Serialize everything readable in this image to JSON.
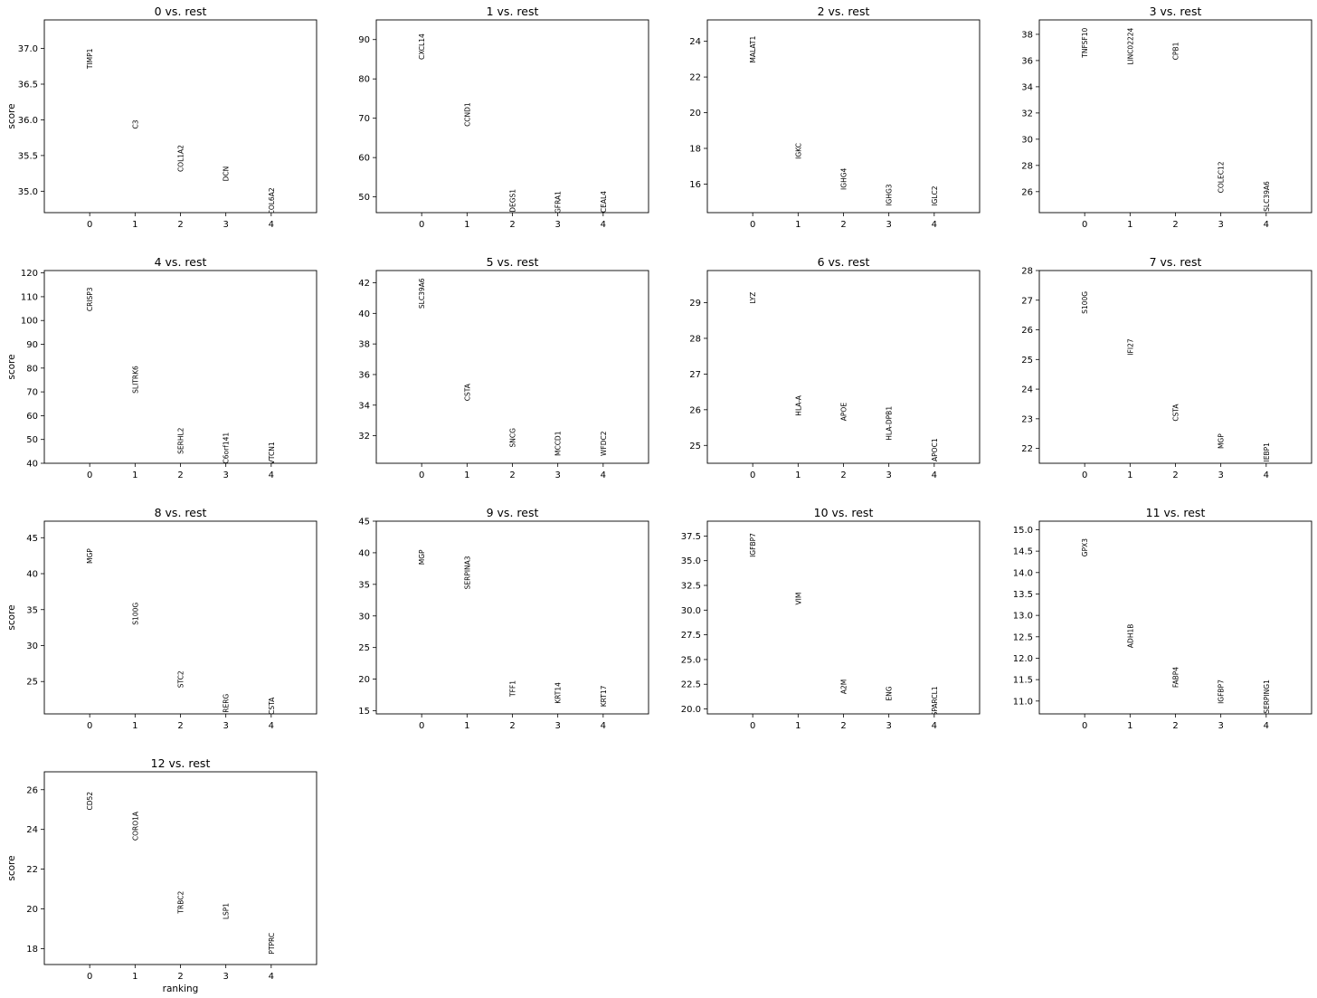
{
  "chart_data": [
    {
      "type": "scatter",
      "title": "0 vs. rest",
      "categories": [
        "0",
        "1",
        "2",
        "3",
        "4"
      ],
      "genes": [
        "TIMP1",
        "C3",
        "COL1A2",
        "DCN",
        "COL6A2"
      ],
      "values": [
        37.0,
        36.0,
        35.65,
        35.35,
        35.05
      ],
      "ylim": [
        34.7,
        37.4
      ],
      "yticks": [
        "35.0",
        "35.5",
        "36.0",
        "36.5",
        "37.0"
      ],
      "ylabel": "score",
      "xlabel": ""
    },
    {
      "type": "scatter",
      "title": "1 vs. rest",
      "categories": [
        "0",
        "1",
        "2",
        "3",
        "4"
      ],
      "genes": [
        "CXCL14",
        "CCND1",
        "DEGS1",
        "GFRA1",
        "TCEAL4"
      ],
      "values": [
        91.5,
        74.0,
        52.0,
        51.5,
        51.5
      ],
      "ylim": [
        46,
        95
      ],
      "yticks": [
        "50",
        "60",
        "70",
        "80",
        "90"
      ],
      "ylabel": "",
      "xlabel": ""
    },
    {
      "type": "scatter",
      "title": "2 vs. rest",
      "categories": [
        "0",
        "1",
        "2",
        "3",
        "4"
      ],
      "genes": [
        "MALAT1",
        "IGKC",
        "IGHG4",
        "IGHG3",
        "IGLC2"
      ],
      "values": [
        24.3,
        18.3,
        16.9,
        16.0,
        15.9
      ],
      "ylim": [
        14.4,
        25.2
      ],
      "yticks": [
        "16",
        "18",
        "20",
        "22",
        "24"
      ],
      "ylabel": "",
      "xlabel": ""
    },
    {
      "type": "scatter",
      "title": "3 vs. rest",
      "categories": [
        "0",
        "1",
        "2",
        "3",
        "4"
      ],
      "genes": [
        "TNFSF10",
        "LINC02224",
        "CPB1",
        "COLEC12",
        "SLC39A6"
      ],
      "values": [
        38.5,
        38.5,
        37.4,
        28.3,
        26.8
      ],
      "ylim": [
        24.4,
        39.1
      ],
      "yticks": [
        "26",
        "28",
        "30",
        "32",
        "34",
        "36",
        "38"
      ],
      "ylabel": "",
      "xlabel": ""
    },
    {
      "type": "scatter",
      "title": "4 vs. rest",
      "categories": [
        "0",
        "1",
        "2",
        "3",
        "4"
      ],
      "genes": [
        "CRISP3",
        "SLITRK6",
        "SERHL2",
        "C6orf141",
        "VTCN1"
      ],
      "values": [
        114,
        81,
        55,
        53,
        49
      ],
      "ylim": [
        40,
        121
      ],
      "yticks": [
        "40",
        "50",
        "60",
        "70",
        "80",
        "90",
        "100",
        "110",
        "120"
      ],
      "ylabel": "score",
      "xlabel": ""
    },
    {
      "type": "scatter",
      "title": "5 vs. rest",
      "categories": [
        "0",
        "1",
        "2",
        "3",
        "4"
      ],
      "genes": [
        "SLC39A6",
        "CSTA",
        "SNCG",
        "MCCD1",
        "WFDC2"
      ],
      "values": [
        42.3,
        35.4,
        32.5,
        32.3,
        32.3
      ],
      "ylim": [
        30.2,
        42.8
      ],
      "yticks": [
        "32",
        "34",
        "36",
        "38",
        "40",
        "42"
      ],
      "ylabel": "",
      "xlabel": ""
    },
    {
      "type": "scatter",
      "title": "6 vs. rest",
      "categories": [
        "0",
        "1",
        "2",
        "3",
        "4"
      ],
      "genes": [
        "LYZ",
        "HLA-A",
        "APOE",
        "HLA-DPB1",
        "APOC1"
      ],
      "values": [
        29.3,
        26.4,
        26.2,
        26.1,
        25.2
      ],
      "ylim": [
        24.5,
        29.9
      ],
      "yticks": [
        "25",
        "26",
        "27",
        "28",
        "29"
      ],
      "ylabel": "",
      "xlabel": ""
    },
    {
      "type": "scatter",
      "title": "7 vs. rest",
      "categories": [
        "0",
        "1",
        "2",
        "3",
        "4"
      ],
      "genes": [
        "S100G",
        "IFI27",
        "CSTA",
        "MGP",
        "IEBP1"
      ],
      "values": [
        27.3,
        25.7,
        23.5,
        22.5,
        22.2
      ],
      "ylim": [
        21.5,
        28.0
      ],
      "yticks": [
        "22",
        "23",
        "24",
        "25",
        "26",
        "27",
        "28"
      ],
      "ylabel": "",
      "xlabel": ""
    },
    {
      "type": "scatter",
      "title": "8 vs. rest",
      "categories": [
        "0",
        "1",
        "2",
        "3",
        "4"
      ],
      "genes": [
        "MGP",
        "S100G",
        "STC2",
        "RERG",
        "CSTA"
      ],
      "values": [
        43.5,
        36.0,
        26.5,
        23.3,
        22.8
      ],
      "ylim": [
        20.5,
        47.3
      ],
      "yticks": [
        "25",
        "30",
        "35",
        "40",
        "45"
      ],
      "ylabel": "score",
      "xlabel": ""
    },
    {
      "type": "scatter",
      "title": "9 vs. rest",
      "categories": [
        "0",
        "1",
        "2",
        "3",
        "4"
      ],
      "genes": [
        "MGP",
        "SERPINA3",
        "TFF1",
        "KRT14",
        "KRT17"
      ],
      "values": [
        40.5,
        39.5,
        19.8,
        19.5,
        19.0
      ],
      "ylim": [
        14.5,
        45.0
      ],
      "yticks": [
        "15",
        "20",
        "25",
        "30",
        "35",
        "40",
        "45"
      ],
      "ylabel": "",
      "xlabel": ""
    },
    {
      "type": "scatter",
      "title": "10 vs. rest",
      "categories": [
        "0",
        "1",
        "2",
        "3",
        "4"
      ],
      "genes": [
        "IGFBP7",
        "VIM",
        "A2M",
        "ENG",
        "SPARCL1"
      ],
      "values": [
        37.8,
        31.8,
        23.0,
        22.3,
        22.3
      ],
      "ylim": [
        19.5,
        39.0
      ],
      "yticks": [
        "20.0",
        "22.5",
        "25.0",
        "27.5",
        "30.0",
        "32.5",
        "35.0",
        "37.5"
      ],
      "ylabel": "",
      "xlabel": ""
    },
    {
      "type": "scatter",
      "title": "11 vs. rest",
      "categories": [
        "0",
        "1",
        "2",
        "3",
        "4"
      ],
      "genes": [
        "GPX3",
        "ADH1B",
        "FABP4",
        "IGFBP7",
        "SERPING1"
      ],
      "values": [
        14.8,
        12.8,
        11.8,
        11.5,
        11.5
      ],
      "ylim": [
        10.7,
        15.2
      ],
      "yticks": [
        "11.0",
        "11.5",
        "12.0",
        "12.5",
        "13.0",
        "13.5",
        "14.0",
        "14.5",
        "15.0"
      ],
      "ylabel": "",
      "xlabel": ""
    },
    {
      "type": "scatter",
      "title": "12 vs. rest",
      "categories": [
        "0",
        "1",
        "2",
        "3",
        "4"
      ],
      "genes": [
        "CD52",
        "CORO1A",
        "TRBC2",
        "LSP1",
        "PTPRC"
      ],
      "values": [
        25.9,
        24.9,
        20.9,
        20.3,
        18.8
      ],
      "ylim": [
        17.2,
        26.9
      ],
      "yticks": [
        "18",
        "20",
        "22",
        "24",
        "26"
      ],
      "ylabel": "score",
      "xlabel": "ranking"
    }
  ]
}
